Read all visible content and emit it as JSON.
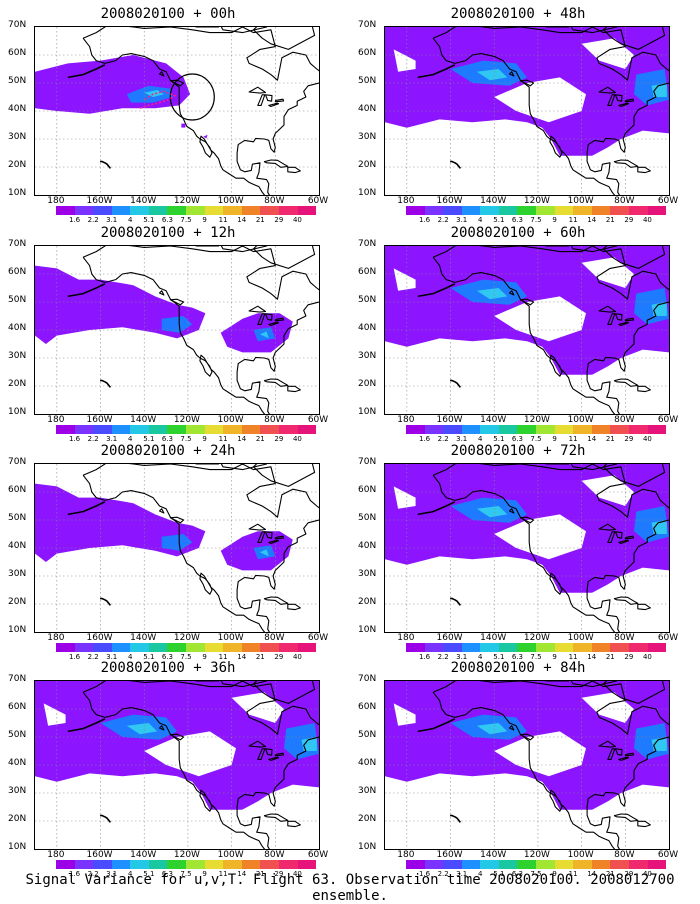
{
  "panels": [
    {
      "title": "2008020100 + 00h",
      "extent": "small",
      "circle": true
    },
    {
      "title": "2008020100 + 48h",
      "extent": "large",
      "circle": false
    },
    {
      "title": "2008020100 + 12h",
      "extent": "medium",
      "circle": false
    },
    {
      "title": "2008020100 + 60h",
      "extent": "large",
      "circle": false
    },
    {
      "title": "2008020100 + 24h",
      "extent": "medium",
      "circle": false
    },
    {
      "title": "2008020100 + 72h",
      "extent": "large",
      "circle": false
    },
    {
      "title": "2008020100 + 36h",
      "extent": "large",
      "circle": false
    },
    {
      "title": "2008020100 + 84h",
      "extent": "large",
      "circle": false
    }
  ],
  "lat_labels": [
    "70N",
    "60N",
    "50N",
    "40N",
    "30N",
    "20N",
    "10N"
  ],
  "lon_labels": [
    "180",
    "160W",
    "140W",
    "120W",
    "100W",
    "80W",
    "60W"
  ],
  "colorbar": {
    "labels": [
      "1.6",
      "2.2",
      "3.1",
      "4",
      "5.1",
      "6.3",
      "7.5",
      "9",
      "11",
      "14",
      "21",
      "29",
      "40"
    ],
    "colors": [
      "#9b00e6",
      "#7a33ff",
      "#4a4aff",
      "#1e90ff",
      "#22c8e6",
      "#19c8a0",
      "#2ed22e",
      "#a0e632",
      "#e6dc32",
      "#f0b428",
      "#f08228",
      "#f05050",
      "#f0286e",
      "#e6147a"
    ]
  },
  "colors": {
    "fill_main": "#8c14ff",
    "fill_light": "#1e7bff",
    "fill_cyan": "#30c8f0",
    "obs_marker": "#ff2080",
    "background": "#ffffff"
  },
  "caption": "Signal Variance for u,v,T. Flight 63. Observation time 2008020100. 2008012700 ensemble."
}
